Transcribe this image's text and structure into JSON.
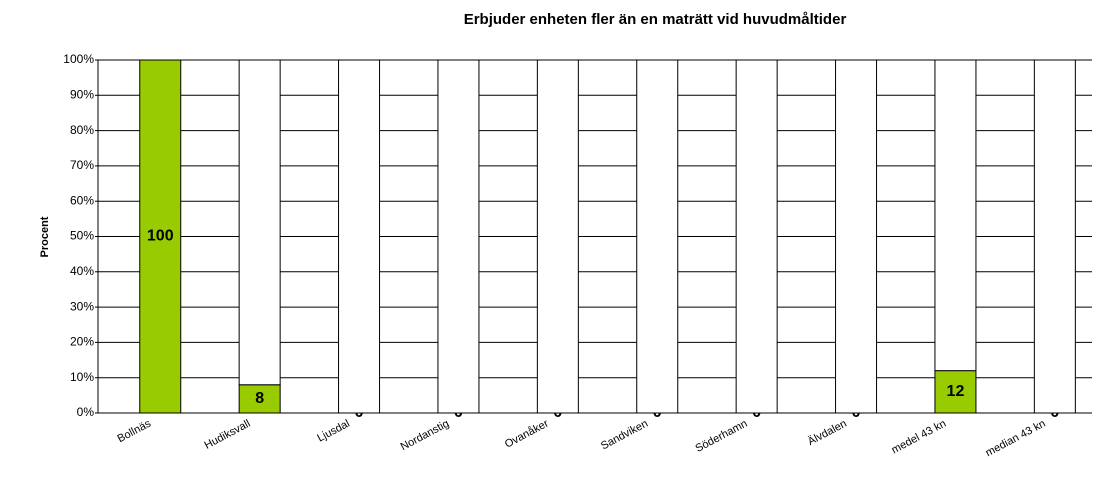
{
  "chart_data": {
    "type": "stacked_bar_percent",
    "title": "Erbjuder enheten fler än en maträtt vid huvudmåltider",
    "y_label": "Procent",
    "categories": [
      "Bollnäs",
      "Hudiksvall",
      "Ljusdal",
      "Nordanstig",
      "Ovanåker",
      "Sandviken",
      "Söderhamn",
      "Älvdalen",
      "medel 43 kn",
      "median 43 kn"
    ],
    "series": [
      {
        "color": "#99cc00",
        "values": [
          100,
          8,
          0,
          0,
          0,
          0,
          0,
          0,
          12,
          0
        ]
      },
      {
        "color": "#ffffff",
        "values": [
          0,
          92,
          100,
          100,
          100,
          100,
          100,
          100,
          88,
          100
        ]
      }
    ],
    "ylim": [
      0,
      100
    ],
    "yticks": [
      {
        "value": 0,
        "label": "0%"
      },
      {
        "value": 10,
        "label": "10%"
      },
      {
        "value": 20,
        "label": "20%"
      },
      {
        "value": 30,
        "label": "30%"
      },
      {
        "value": 40,
        "label": "40%"
      },
      {
        "value": 50,
        "label": "50%"
      },
      {
        "value": 60,
        "label": "60%"
      },
      {
        "value": 70,
        "label": "70%"
      },
      {
        "value": 80,
        "label": "80%"
      },
      {
        "value": 90,
        "label": "90%"
      },
      {
        "value": 100,
        "label": "100%"
      }
    ],
    "grid": true
  }
}
